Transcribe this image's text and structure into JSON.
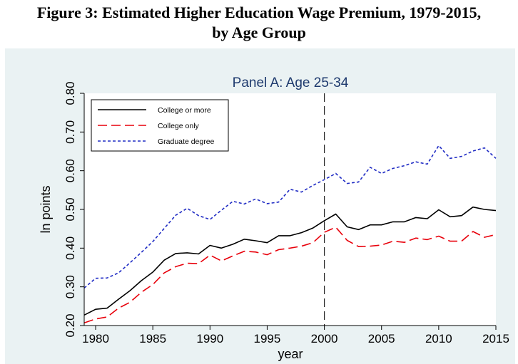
{
  "figure": {
    "title_line1": "Figure 3: Estimated Higher Education Wage Premium, 1979-2015,",
    "title_line2": "by Age Group"
  },
  "chart_data": {
    "type": "line",
    "title": "Panel A: Age 25-34",
    "xlabel": "year",
    "ylabel": "ln points",
    "xlim": [
      1979,
      2015
    ],
    "ylim": [
      0.2,
      0.8
    ],
    "xticks": [
      1980,
      1985,
      1990,
      1995,
      2000,
      2005,
      2010,
      2015
    ],
    "xtick_labels": [
      "1980",
      "1985",
      "1990",
      "1995",
      "2000",
      "2005",
      "2010",
      "2015"
    ],
    "yticks": [
      0.2,
      0.3,
      0.4,
      0.5,
      0.6,
      0.7,
      0.8
    ],
    "ytick_labels": [
      "0.20",
      "0.30",
      "0.40",
      "0.50",
      "0.60",
      "0.70",
      "0.80"
    ],
    "vline_x": 2000,
    "legend_position": "top-left",
    "x": [
      1979,
      1980,
      1981,
      1982,
      1983,
      1984,
      1985,
      1986,
      1987,
      1988,
      1989,
      1990,
      1991,
      1992,
      1993,
      1994,
      1995,
      1996,
      1997,
      1998,
      1999,
      2000,
      2001,
      2002,
      2003,
      2004,
      2005,
      2006,
      2007,
      2008,
      2009,
      2010,
      2011,
      2012,
      2013,
      2014,
      2015
    ],
    "series": [
      {
        "name": "College or more",
        "color": "#000000",
        "style": "solid",
        "values": [
          0.227,
          0.242,
          0.245,
          0.268,
          0.29,
          0.316,
          0.338,
          0.369,
          0.386,
          0.388,
          0.385,
          0.407,
          0.4,
          0.41,
          0.423,
          0.419,
          0.414,
          0.432,
          0.432,
          0.44,
          0.452,
          0.471,
          0.488,
          0.455,
          0.448,
          0.46,
          0.46,
          0.468,
          0.468,
          0.479,
          0.476,
          0.499,
          0.481,
          0.484,
          0.506,
          0.5,
          0.497
        ]
      },
      {
        "name": "College only",
        "color": "#e8000b",
        "style": "longdash",
        "values": [
          0.207,
          0.217,
          0.222,
          0.245,
          0.26,
          0.286,
          0.306,
          0.336,
          0.352,
          0.361,
          0.36,
          0.382,
          0.367,
          0.38,
          0.392,
          0.39,
          0.383,
          0.396,
          0.4,
          0.405,
          0.414,
          0.441,
          0.454,
          0.42,
          0.404,
          0.405,
          0.408,
          0.418,
          0.415,
          0.426,
          0.422,
          0.431,
          0.418,
          0.418,
          0.443,
          0.428,
          0.435
        ]
      },
      {
        "name": "Graduate degree",
        "color": "#1f2bc4",
        "style": "shortdash",
        "values": [
          0.297,
          0.322,
          0.323,
          0.336,
          0.362,
          0.389,
          0.417,
          0.451,
          0.485,
          0.503,
          0.484,
          0.474,
          0.498,
          0.521,
          0.514,
          0.527,
          0.515,
          0.519,
          0.552,
          0.545,
          0.562,
          0.577,
          0.593,
          0.567,
          0.571,
          0.609,
          0.593,
          0.606,
          0.613,
          0.623,
          0.617,
          0.665,
          0.632,
          0.637,
          0.651,
          0.659,
          0.632
        ]
      }
    ]
  }
}
